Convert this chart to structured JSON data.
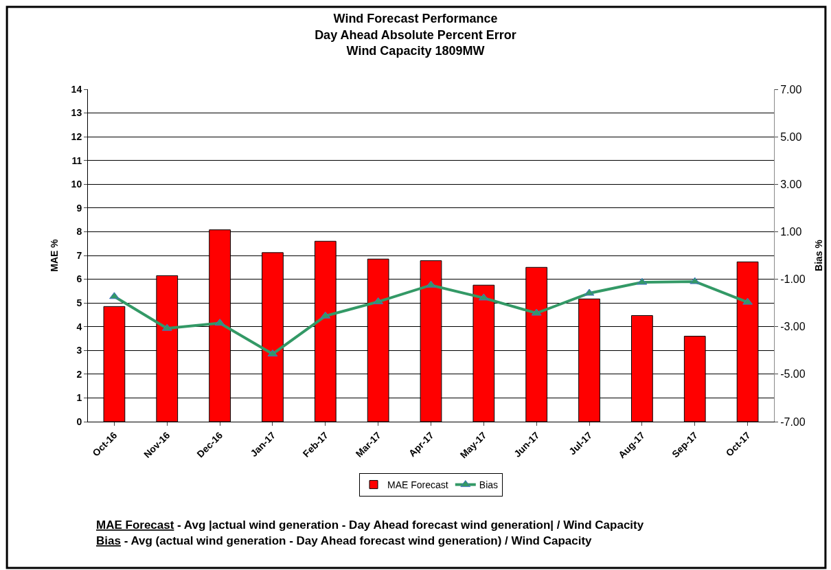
{
  "chart_data": {
    "type": "bar",
    "title": "Wind Forecast Performance\nDay Ahead Absolute Percent Error\nWind Capacity 1809MW",
    "ylabel": "MAE %",
    "y2label": "Bias %",
    "categories": [
      "Oct-16",
      "Nov-16",
      "Dec-16",
      "Jan-17",
      "Feb-17",
      "Mar-17",
      "Apr-17",
      "May-17",
      "Jun-17",
      "Jul-17",
      "Aug-17",
      "Sep-17",
      "Oct-17"
    ],
    "series": [
      {
        "name": "MAE Forecast",
        "color": "#ff0000",
        "values": [
          4.85,
          6.15,
          8.08,
          7.12,
          7.6,
          6.85,
          6.78,
          5.75,
          6.5,
          5.17,
          4.47,
          3.6,
          6.73
        ]
      },
      {
        "name": "Bias",
        "type": "line",
        "axis": "y2",
        "color": "#339966",
        "marker": "triangle",
        "values": [
          -1.73,
          -3.07,
          -2.85,
          -4.15,
          -2.55,
          -1.95,
          -1.25,
          -1.79,
          -2.43,
          -1.59,
          -1.13,
          -1.1,
          -1.97
        ]
      }
    ],
    "ylim": [
      0,
      14
    ],
    "yticks": [
      0,
      1,
      2,
      3,
      4,
      5,
      6,
      7,
      8,
      9,
      10,
      11,
      12,
      13,
      14
    ],
    "y2lim": [
      -7,
      7
    ],
    "y2ticks": [
      {
        "value": 7,
        "label": "7.00"
      },
      {
        "value": 5,
        "label": "5.00"
      },
      {
        "value": 3,
        "label": "3.00"
      },
      {
        "value": 1,
        "label": "1.00"
      },
      {
        "value": -1,
        "label": "-1.00"
      },
      {
        "value": -3,
        "label": "-3.00"
      },
      {
        "value": -5,
        "label": "-5.00"
      },
      {
        "value": -7,
        "label": "-7.00"
      }
    ],
    "grid": "y",
    "legend": "bottom",
    "annotations": [
      "MAE Forecast - Avg |actual wind generation - Day Ahead forecast wind generation| / Wind Capacity",
      "Bias - Avg (actual wind generation - Day Ahead forecast wind generation) / Wind Capacity"
    ]
  }
}
